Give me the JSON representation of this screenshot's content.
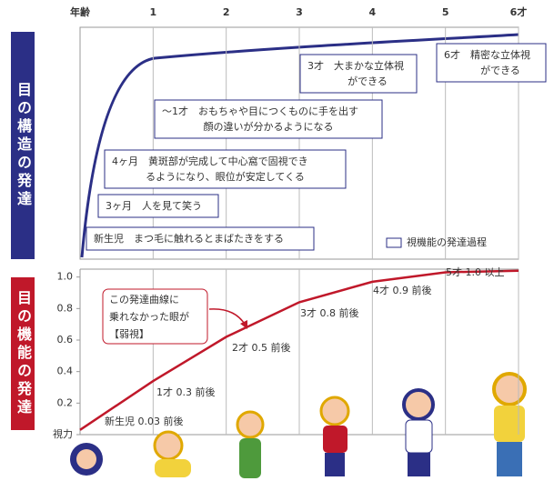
{
  "panel_labels": [
    "目の構造の発達",
    "目の機能の発達"
  ],
  "structure": {
    "boxes": [
      {
        "lines": [
          "3才　大まかな立体視",
          "ができる"
        ]
      },
      {
        "lines": [
          "6才　精密な立体視",
          "ができる"
        ]
      },
      {
        "lines": [
          "～1才　おもちゃや目につくものに手を出す",
          "顔の違いが分かるようになる"
        ]
      },
      {
        "lines": [
          "4ヶ月　黄斑部が完成して中心窩で固視でき",
          "るようになり、眼位が安定してくる"
        ]
      },
      {
        "lines": [
          "3ヶ月　人を見て笑う"
        ]
      },
      {
        "lines": [
          "新生児　まつ毛に触れるとまばたきをする"
        ]
      }
    ],
    "legend": "視機能の発達過程"
  },
  "chart_data": {
    "type": "line",
    "x": [
      0,
      1,
      2,
      3,
      4,
      5,
      6
    ],
    "series": [
      {
        "color": "#c0182a",
        "values": [
          0.03,
          0.34,
          0.62,
          0.84,
          0.97,
          1.03,
          1.04
        ]
      }
    ],
    "xlim": [
      0,
      6
    ],
    "xticks": [
      {
        "value": 0,
        "label": "年齢"
      },
      1,
      2,
      3,
      4,
      5,
      {
        "value": 6,
        "label": "6才"
      }
    ],
    "ylim": [
      0,
      1.05
    ],
    "yticks": [
      {
        "value": 0,
        "label": "視力"
      },
      0.2,
      0.4,
      0.6,
      0.8,
      {
        "value": 1,
        "label": "1.0"
      }
    ],
    "annotations": [
      "新生児 0.03 前後",
      "1才 0.3 前後",
      "2才 0.5 前後",
      "3才 0.8 前後",
      "4才 0.9 前後",
      "5才 1.0 以上"
    ],
    "note": [
      "この発達曲線に",
      "乗れなかった眼が",
      "【弱視】"
    ]
  }
}
